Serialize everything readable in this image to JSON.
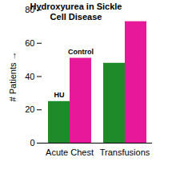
{
  "chart_data": {
    "type": "bar",
    "title": "Hydroxyurea in Sickle Cell Disease",
    "y_label": "# Patients",
    "categories": [
      "Acute Chest",
      "Transfusions"
    ],
    "series": [
      {
        "name": "HU",
        "color": "#1f8a2a",
        "values": [
          25,
          48
        ]
      },
      {
        "name": "Control",
        "color": "#e8189a",
        "values": [
          51,
          73
        ]
      }
    ],
    "ylim": [
      0,
      80
    ],
    "yticks": [
      0,
      20,
      40,
      60,
      80
    ]
  }
}
